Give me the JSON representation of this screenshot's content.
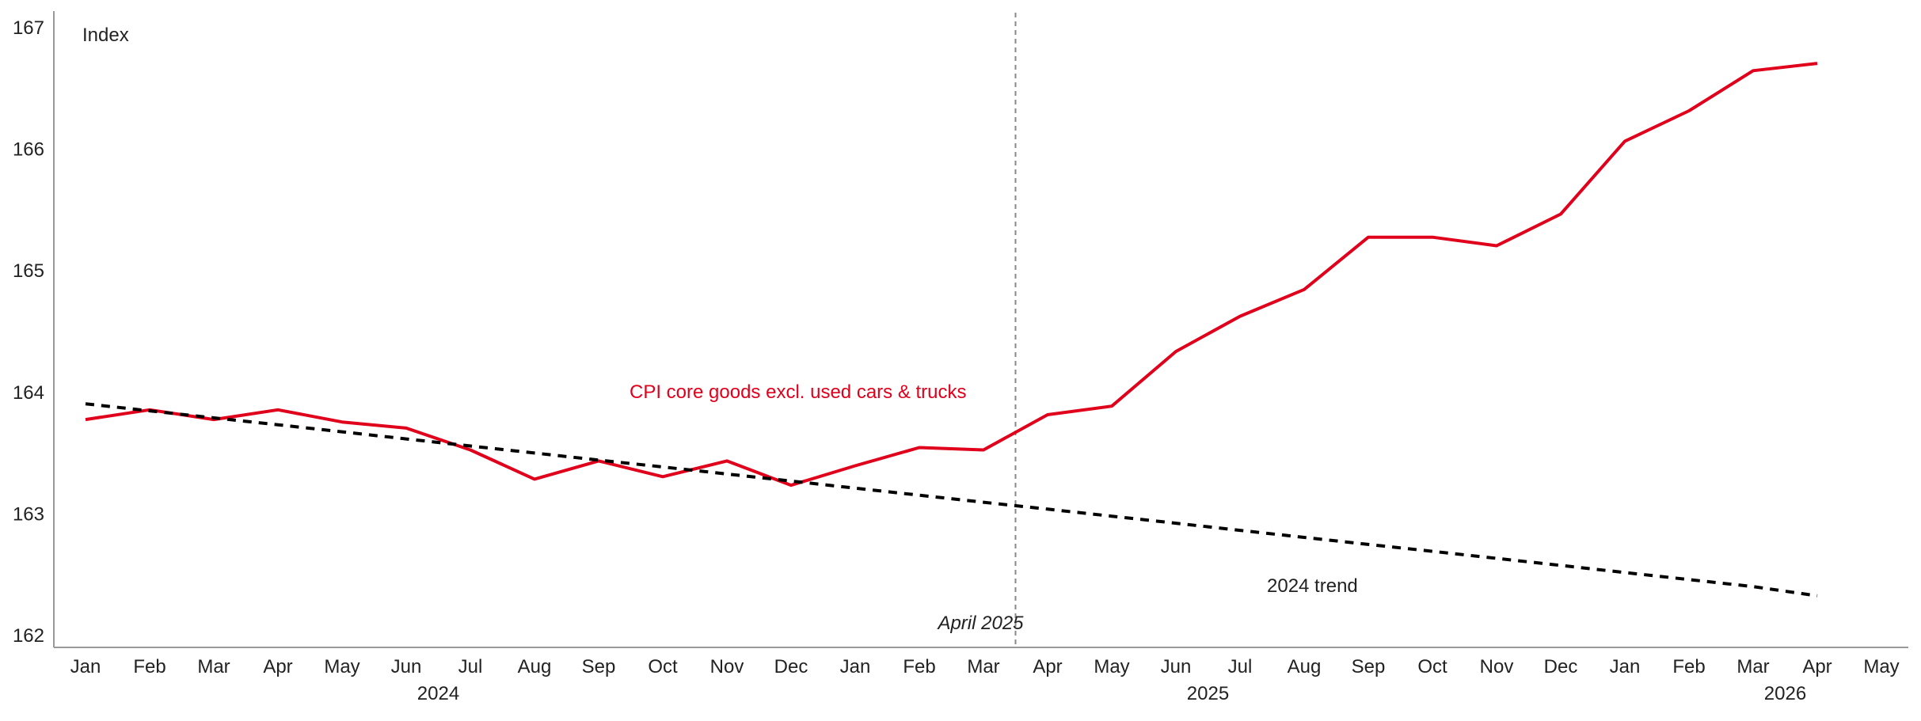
{
  "chart_data": {
    "type": "line",
    "ylabel": "Index",
    "ylim": [
      162,
      167
    ],
    "yticks": [
      "162",
      "163",
      "164",
      "165",
      "166",
      "167"
    ],
    "xticks": [
      "Jan",
      "Feb",
      "Mar",
      "Apr",
      "May",
      "Jun",
      "Jul",
      "Aug",
      "Sep",
      "Oct",
      "Nov",
      "Dec",
      "Jan",
      "Feb",
      "Mar",
      "Apr",
      "May",
      "Jun",
      "Jul",
      "Aug",
      "Sep",
      "Oct",
      "Nov",
      "Dec",
      "Jan",
      "Feb",
      "Mar",
      "Apr",
      "May"
    ],
    "years": [
      {
        "label": "2024",
        "month_index": 5.5
      },
      {
        "label": "2025",
        "month_index": 17.5
      },
      {
        "label": "2026",
        "month_index": 26.5
      }
    ],
    "series": [
      {
        "name": "CPI core goods excl. used cars & trucks",
        "color": "#e0001b",
        "style": "solid",
        "values": [
          163.77,
          163.85,
          163.77,
          163.85,
          163.75,
          163.7,
          163.52,
          163.28,
          163.43,
          163.3,
          163.43,
          163.23,
          163.39,
          163.54,
          163.52,
          163.81,
          163.88,
          164.33,
          164.62,
          164.84,
          165.27,
          165.27,
          165.2,
          165.46,
          166.06,
          166.31,
          166.64,
          166.7
        ]
      },
      {
        "name": "2024 trend",
        "color": "#000000",
        "style": "dashed",
        "values": [
          163.9,
          163.842,
          163.784,
          163.727,
          163.669,
          163.611,
          163.553,
          163.495,
          163.437,
          163.38,
          163.322,
          163.264,
          163.206,
          163.148,
          163.09,
          163.033,
          162.975,
          162.917,
          162.859,
          162.801,
          162.743,
          162.686,
          162.628,
          162.57,
          162.512,
          162.454,
          162.396,
          162.32
        ]
      }
    ],
    "reference_line": {
      "label": "April 2025",
      "month_index": 14.5
    },
    "grid": false
  }
}
